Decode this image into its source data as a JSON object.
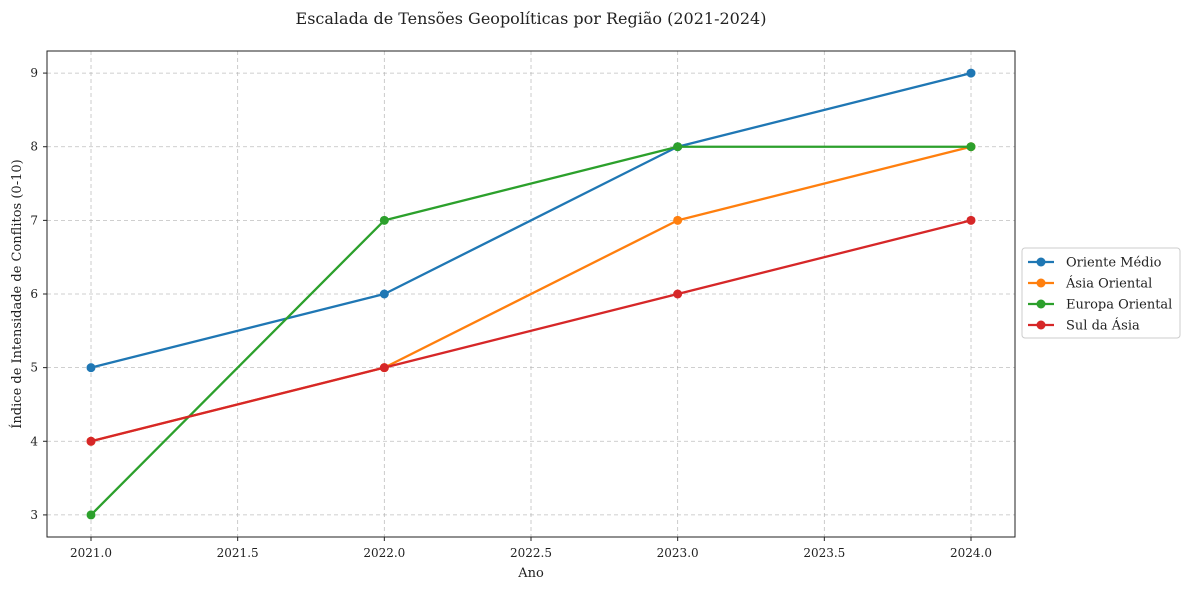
{
  "chart_data": {
    "type": "line",
    "title": "Escalada de Tensões Geopolíticas por Região (2021-2024)",
    "xlabel": "Ano",
    "ylabel": "Índice de Intensidade de Conflitos (0-10)",
    "x": [
      2021,
      2022,
      2023,
      2024
    ],
    "xlim": [
      2020.85,
      2024.15
    ],
    "ylim": [
      2.7,
      9.3
    ],
    "xticks": [
      "2021.0",
      "2021.5",
      "2022.0",
      "2022.5",
      "2023.0",
      "2023.5",
      "2024.0"
    ],
    "xtick_values": [
      2021.0,
      2021.5,
      2022.0,
      2022.5,
      2023.0,
      2023.5,
      2024.0
    ],
    "yticks": [
      "3",
      "4",
      "5",
      "6",
      "7",
      "8",
      "9"
    ],
    "ytick_values": [
      3,
      4,
      5,
      6,
      7,
      8,
      9
    ],
    "grid": true,
    "legend_position": "right",
    "series": [
      {
        "name": "Oriente Médio",
        "values": [
          5,
          6,
          8,
          9
        ],
        "color": "#1f77b4"
      },
      {
        "name": "Ásia Oriental",
        "values": [
          4,
          5,
          7,
          8
        ],
        "color": "#ff7f0e"
      },
      {
        "name": "Europa Oriental",
        "values": [
          3,
          7,
          8,
          8
        ],
        "color": "#2ca02c"
      },
      {
        "name": "Sul da Ásia",
        "values": [
          4,
          5,
          6,
          7
        ],
        "color": "#d62728"
      }
    ]
  }
}
